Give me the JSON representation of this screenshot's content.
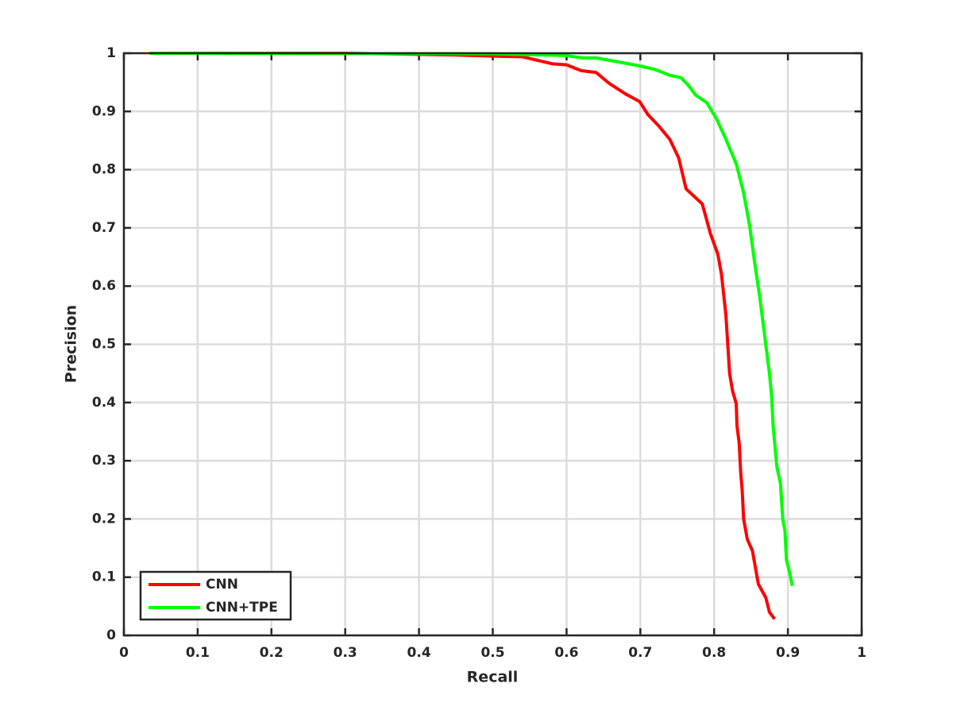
{
  "chart_data": {
    "type": "line",
    "xlabel": "Recall",
    "ylabel": "Precision",
    "xlim": [
      0,
      1
    ],
    "ylim": [
      0,
      1
    ],
    "xticks": [
      0,
      0.1,
      0.2,
      0.3,
      0.4,
      0.5,
      0.6,
      0.7,
      0.8,
      0.9,
      1
    ],
    "yticks": [
      0,
      0.1,
      0.2,
      0.3,
      0.4,
      0.5,
      0.6,
      0.7,
      0.8,
      0.9,
      1
    ],
    "grid": true,
    "legend": "lower left",
    "series": [
      {
        "name": "CNN",
        "color": "#ff0000",
        "x": [
          0.035,
          0.3,
          0.45,
          0.5,
          0.54,
          0.56,
          0.58,
          0.6,
          0.62,
          0.64,
          0.658,
          0.68,
          0.699,
          0.71,
          0.725,
          0.74,
          0.752,
          0.762,
          0.784,
          0.795,
          0.805,
          0.81,
          0.816,
          0.821,
          0.825,
          0.83,
          0.831,
          0.834,
          0.836,
          0.838,
          0.84,
          0.845,
          0.852,
          0.86,
          0.87,
          0.875,
          0.882
        ],
        "values": [
          1,
          1,
          0.997,
          0.995,
          0.994,
          0.988,
          0.982,
          0.98,
          0.97,
          0.967,
          0.948,
          0.93,
          0.917,
          0.895,
          0.875,
          0.852,
          0.82,
          0.767,
          0.741,
          0.69,
          0.655,
          0.62,
          0.55,
          0.45,
          0.42,
          0.398,
          0.36,
          0.33,
          0.28,
          0.25,
          0.2,
          0.165,
          0.145,
          0.088,
          0.065,
          0.04,
          0.028
        ]
      },
      {
        "name": "CNN+TPE",
        "color": "#00ff00",
        "x": [
          0.035,
          0.5,
          0.6,
          0.62,
          0.64,
          0.7,
          0.72,
          0.74,
          0.755,
          0.765,
          0.775,
          0.79,
          0.803,
          0.815,
          0.83,
          0.84,
          0.848,
          0.855,
          0.862,
          0.868,
          0.875,
          0.878,
          0.88,
          0.885,
          0.89,
          0.893,
          0.896,
          0.898,
          0.902,
          0.906
        ],
        "values": [
          1,
          0.999,
          0.996,
          0.992,
          0.992,
          0.978,
          0.972,
          0.962,
          0.958,
          0.945,
          0.928,
          0.915,
          0.888,
          0.855,
          0.81,
          0.76,
          0.705,
          0.64,
          0.58,
          0.52,
          0.45,
          0.41,
          0.36,
          0.29,
          0.26,
          0.2,
          0.18,
          0.13,
          0.11,
          0.085
        ]
      }
    ]
  }
}
